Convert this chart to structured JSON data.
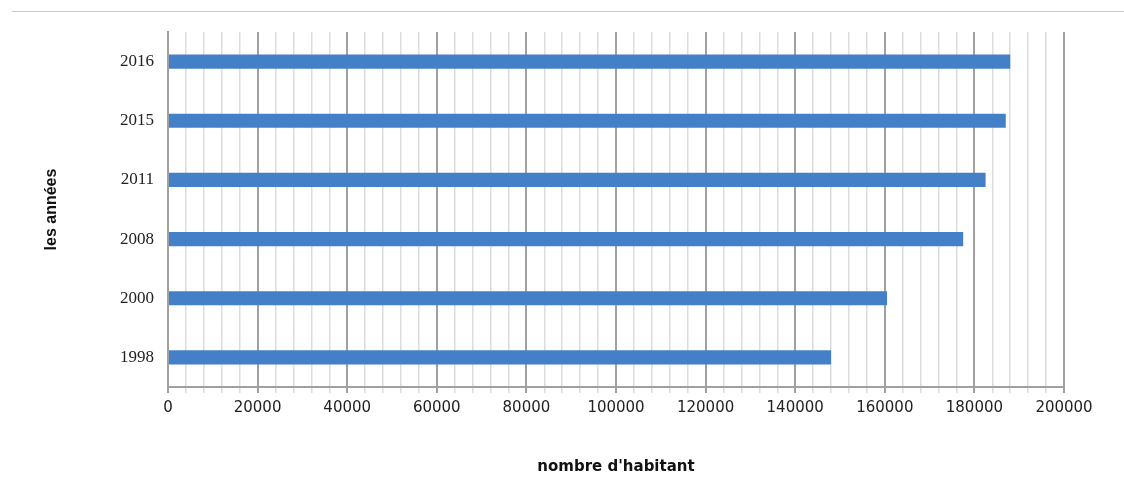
{
  "chart_data": {
    "type": "bar",
    "orientation": "horizontal",
    "xlabel": "nombre d'habitant",
    "ylabel": "les années",
    "categories": [
      "2016",
      "2015",
      "2011",
      "2008",
      "2000",
      "1998"
    ],
    "values": [
      188000,
      187000,
      182500,
      177500,
      160500,
      148000
    ],
    "color": "#4480c8",
    "xlim": [
      0,
      200000
    ],
    "xticks": [
      0,
      {
        "value": 4000,
        "label": null
      },
      {
        "value": 8000,
        "label": null
      },
      {
        "value": 12000,
        "label": null
      },
      {
        "value": 16000,
        "label": null
      },
      20000,
      {
        "value": 24000,
        "label": null
      },
      {
        "value": 28000,
        "label": null
      },
      {
        "value": 32000,
        "label": null
      },
      {
        "value": 36000,
        "label": null
      },
      40000,
      {
        "value": 44000,
        "label": null
      },
      {
        "value": 48000,
        "label": null
      },
      {
        "value": 52000,
        "label": null
      },
      {
        "value": 56000,
        "label": null
      },
      60000,
      {
        "value": 64000,
        "label": null
      },
      {
        "value": 68000,
        "label": null
      },
      {
        "value": 72000,
        "label": null
      },
      {
        "value": 76000,
        "label": null
      },
      80000,
      {
        "value": 84000,
        "label": null
      },
      {
        "value": 88000,
        "label": null
      },
      {
        "value": 92000,
        "label": null
      },
      {
        "value": 96000,
        "label": null
      },
      100000,
      {
        "value": 104000,
        "label": null
      },
      {
        "value": 108000,
        "label": null
      },
      {
        "value": 112000,
        "label": null
      },
      {
        "value": 116000,
        "label": null
      },
      120000,
      {
        "value": 124000,
        "label": null
      },
      {
        "value": 128000,
        "label": null
      },
      {
        "value": 132000,
        "label": null
      },
      {
        "value": 136000,
        "label": null
      },
      140000,
      {
        "value": 144000,
        "label": null
      },
      {
        "value": 148000,
        "label": null
      },
      {
        "value": 152000,
        "label": null
      },
      {
        "value": 156000,
        "label": null
      },
      160000,
      {
        "value": 164000,
        "label": null
      },
      {
        "value": 168000,
        "label": null
      },
      {
        "value": 172000,
        "label": null
      },
      {
        "value": 176000,
        "label": null
      },
      180000,
      {
        "value": 184000,
        "label": null
      },
      {
        "value": 188000,
        "label": null
      },
      {
        "value": 192000,
        "label": null
      },
      {
        "value": 196000,
        "label": null
      },
      200000
    ],
    "grid": "x",
    "legend": false
  }
}
